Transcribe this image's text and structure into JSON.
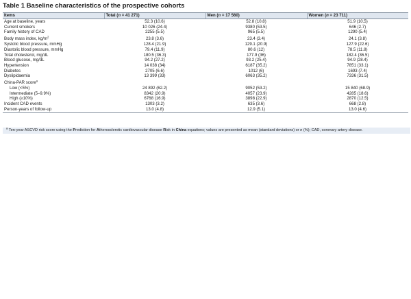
{
  "title": "Table 1 Baseline characteristics of the prospective cohorts",
  "headers": {
    "items": "Items",
    "total": {
      "prefix": "Total (",
      "n": "n",
      "value": " = 41 271)"
    },
    "men": {
      "prefix": "Men (",
      "n": "n",
      "value": " = 17 560)"
    },
    "women": {
      "prefix": "Women (",
      "n": "n",
      "value": " = 23 711)"
    }
  },
  "rows": [
    {
      "label": "Age at baseline, years",
      "total": "52.3 (10.6)",
      "men": "52.8 (10.8)",
      "women": "51.9 (10.5)"
    },
    {
      "label": "Current smokers",
      "total": "10 026 (24.4)",
      "men": "9380 (53.5)",
      "women": "646 (2.7)"
    },
    {
      "label": "Family history of CAD",
      "total": "2255 (5.5)",
      "men": "965 (5.5)",
      "women": "1290 (5.4)"
    },
    {
      "label": "Body mass index, kg/m",
      "sup": "2",
      "total": "23.8 (3.6)",
      "men": "23.4 (3.4)",
      "women": "24.1 (3.8)"
    },
    {
      "label": "Systolic blood pressure, mmHg",
      "total": "128.4 (21.9)",
      "men": "129.1 (20.9)",
      "women": "127.9 (22.6)"
    },
    {
      "label": "Diastolic blood pressure, mmHg",
      "total": "79.4 (11.9)",
      "men": "80.6 (12)",
      "women": "78.5 (11.8)"
    },
    {
      "label": "Total cholesterol, mg/dL",
      "total": "180.5 (36.3)",
      "men": "177.9 (36)",
      "women": "182.4 (36.5)"
    },
    {
      "label": "Blood glucose, mg/dL",
      "total": "94.2 (27.2)",
      "men": "93.2 (25.4)",
      "women": "94.9 (28.4)"
    },
    {
      "label": "Hypertension",
      "total": "14 038 (34)",
      "men": "6187 (35.2)",
      "women": "7851 (33.1)"
    },
    {
      "label": "Diabetes",
      "total": "2705 (6.6)",
      "men": "1012 (6)",
      "women": "1693 (7.4)"
    },
    {
      "label": "Dyslipidaemia",
      "total": "13 399 (33)",
      "men": "6063 (35.2)",
      "women": "7336 (31.5)"
    },
    {
      "label": "China-PAR score",
      "sup": "a",
      "total": "",
      "men": "",
      "women": ""
    },
    {
      "label": "Low (<5%)",
      "indent": true,
      "total": "24 892 (62.2)",
      "men": "9052 (53.2)",
      "women": "15 840 (68.9)"
    },
    {
      "label": "Intermediate (5–9.9%)",
      "indent": true,
      "total": "8342 (20.9)",
      "men": "4057 (23.9)",
      "women": "4285 (18.6)"
    },
    {
      "label": "High (≥10%)",
      "indent": true,
      "total": "6768 (16.9)",
      "men": "3898 (22.9)",
      "women": "2870 (12.5)"
    },
    {
      "label": "Incident CAD events",
      "total": "1303 (3.2)",
      "men": "635 (3.6)",
      "women": "668 (2.8)"
    },
    {
      "label": "Person-years of follow-up",
      "total": "13.0 (4.8)",
      "men": "12.9 (5.1)",
      "women": "13.0 (4.6)"
    }
  ],
  "footnote": {
    "marker": "a",
    "p1": " Ten-year ASCVD risk score using the ",
    "b1": "P",
    "p2": "rediction for ",
    "b2": "A",
    "p3": "therosclerotic cardiovascular disease ",
    "b3": "R",
    "p4": "isk in ",
    "b4": "China",
    "p5": " equations; values are presented as mean (standard deviations) or ",
    "i1": "n",
    "p6": " (%); CAD, coronary artery disease."
  }
}
